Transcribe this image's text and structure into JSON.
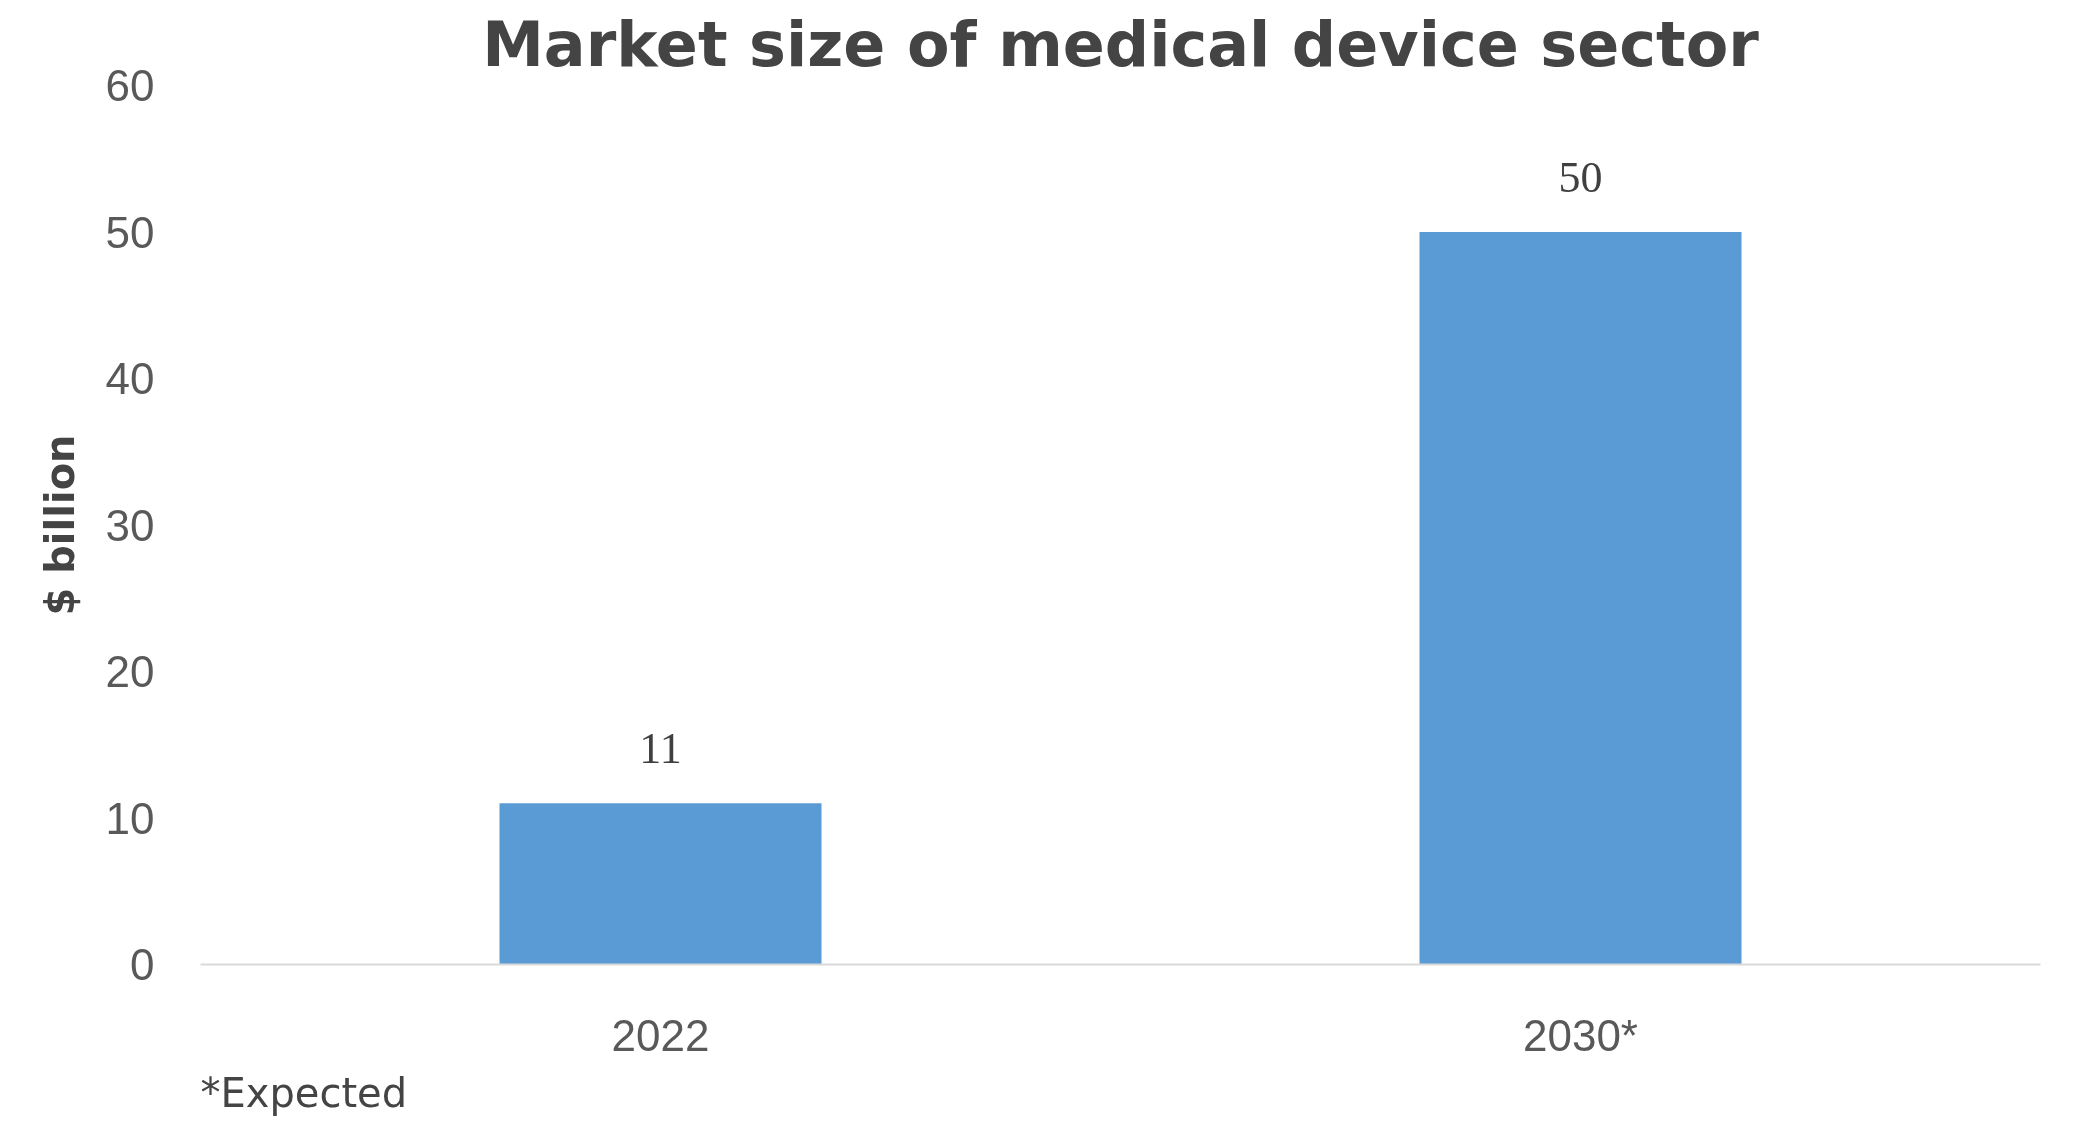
{
  "chart_data": {
    "type": "bar",
    "title": "Market size of medical device sector",
    "ylabel": "$ billion",
    "categories": [
      "2022",
      "2030*"
    ],
    "values": [
      11,
      50
    ],
    "color": "#5b9bd5",
    "ylim": [
      0,
      60
    ],
    "yticks": [
      0,
      10,
      20,
      30,
      40,
      50,
      60
    ],
    "grid": false,
    "data_labels": true,
    "annotations": [
      "*Expected"
    ]
  }
}
